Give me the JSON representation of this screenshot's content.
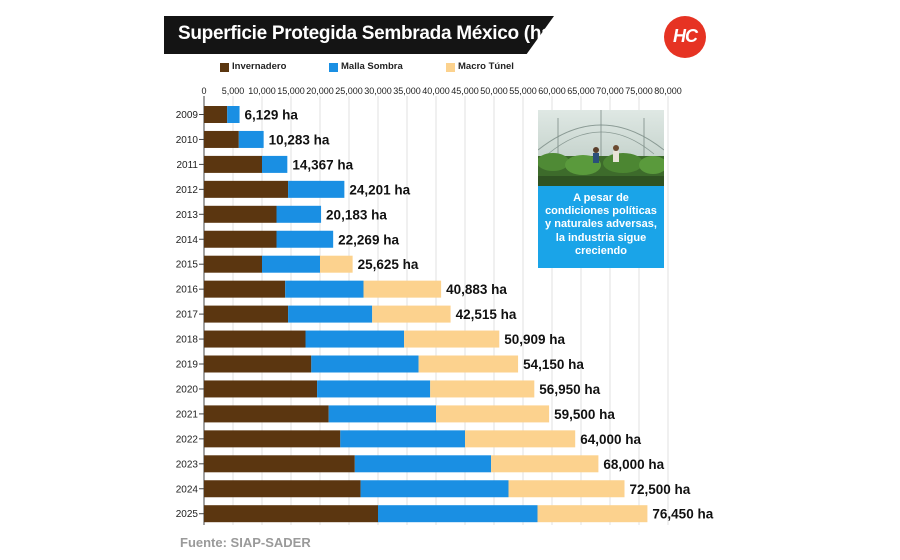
{
  "header": {
    "title": "Superficie Protegida Sembrada México (ha)",
    "logo_text": "HC"
  },
  "legend": [
    {
      "label": "Invernadero",
      "color": "#5b3610"
    },
    {
      "label": "Malla Sombra",
      "color": "#1a8fe3"
    },
    {
      "label": "Macro Túnel",
      "color": "#fcd28e"
    }
  ],
  "info_box": {
    "text": "A pesar de condiciones políticas y naturales adversas, la industria sigue creciendo"
  },
  "source": "Fuente: SIAP-SADER",
  "chart_data": {
    "type": "bar",
    "orientation": "horizontal",
    "stacked": true,
    "title": "Superficie Protegida Sembrada México (ha)",
    "xlim": [
      0,
      80000
    ],
    "x_ticks": [
      "0",
      "5,000",
      "10,000",
      "15,000",
      "20,000",
      "25,000",
      "30,000",
      "35,000",
      "40,000",
      "45,000",
      "50,000",
      "55,000",
      "60,000",
      "65,000",
      "70,000",
      "75,000",
      "80,000"
    ],
    "categories": [
      "2009",
      "2010",
      "2011",
      "2012",
      "2013",
      "2014",
      "2015",
      "2016",
      "2017",
      "2018",
      "2019",
      "2020",
      "2021",
      "2022",
      "2023",
      "2024",
      "2025"
    ],
    "series": [
      {
        "name": "Invernadero",
        "color": "#5b3610",
        "values": [
          4000,
          6000,
          10000,
          14500,
          12500,
          12500,
          10000,
          14000,
          14500,
          17500,
          18500,
          19500,
          21500,
          23500,
          26000,
          27000,
          30000
        ]
      },
      {
        "name": "Malla Sombra",
        "color": "#1a8fe3",
        "values": [
          2129,
          4283,
          4367,
          9701,
          7683,
          9769,
          10000,
          13500,
          14500,
          17000,
          18500,
          19500,
          18500,
          21500,
          23500,
          25500,
          27500
        ]
      },
      {
        "name": "Macro Túnel",
        "color": "#fcd28e",
        "values": [
          0,
          0,
          0,
          0,
          0,
          0,
          5625,
          13383,
          13515,
          16409,
          17150,
          17950,
          19500,
          19000,
          18500,
          20000,
          18950
        ]
      }
    ],
    "totals": [
      "6,129 ha",
      "10,283 ha",
      "14,367 ha",
      "24,201 ha",
      "20,183 ha",
      "22,269 ha",
      "25,625 ha",
      "40,883 ha",
      "42,515 ha",
      "50,909 ha",
      "54,150 ha",
      "56,950 ha",
      "59,500 ha",
      "64,000 ha",
      "68,000 ha",
      "72,500 ha",
      "76,450 ha"
    ]
  }
}
